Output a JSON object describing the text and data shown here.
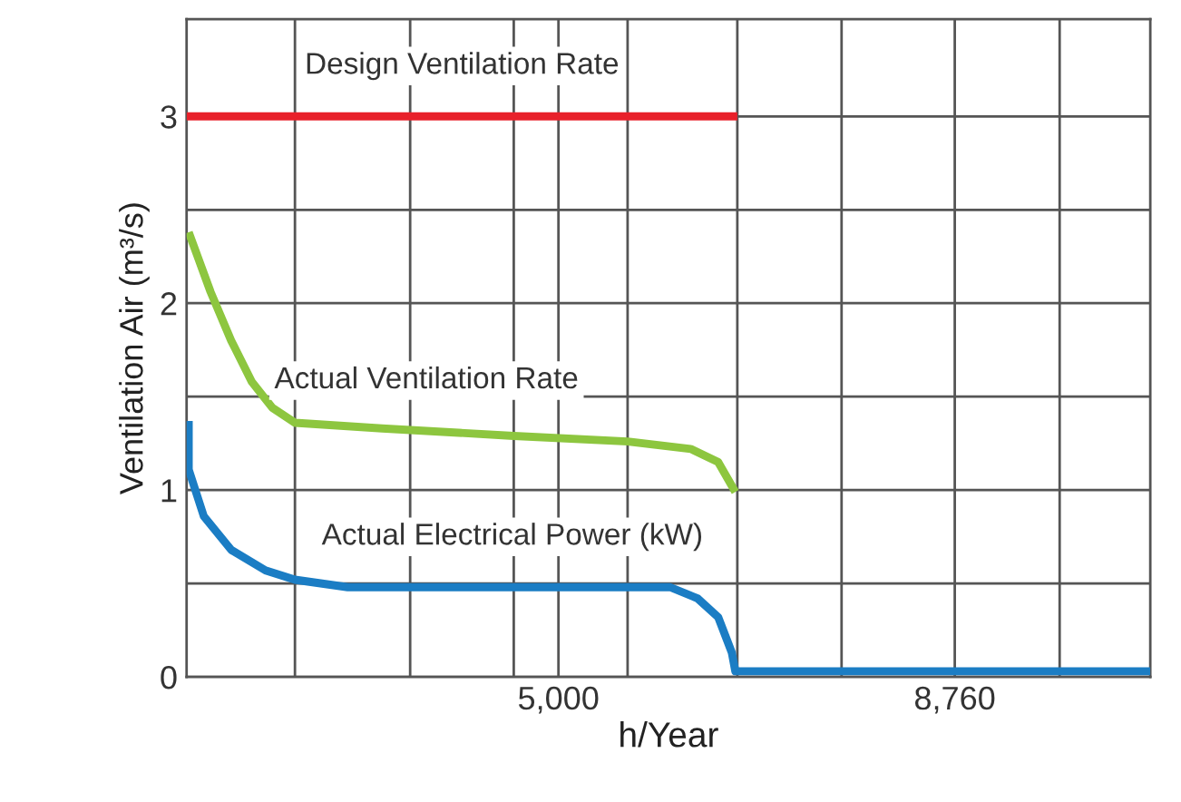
{
  "chart_data": {
    "type": "line",
    "xlabel": "h/Year",
    "ylabel": "Ventilation Air (m³/s)",
    "xlim": [
      1472,
      10615
    ],
    "ylim": [
      0,
      3.52
    ],
    "xticks": [
      {
        "value": 2500,
        "label": null
      },
      {
        "value": 3593,
        "label": null
      },
      {
        "value": 4576,
        "label": null
      },
      {
        "value": 5000,
        "label": "5,000"
      },
      {
        "value": 5656,
        "label": null
      },
      {
        "value": 6697,
        "label": null
      },
      {
        "value": 7686,
        "label": null
      },
      {
        "value": 8760,
        "label": "8,760"
      },
      {
        "value": 9755,
        "label": null
      }
    ],
    "yticks": [
      0,
      {
        "value": 0.5,
        "label": null
      },
      1,
      {
        "value": 1.5,
        "label": null
      },
      2,
      {
        "value": 2.5,
        "label": null
      },
      3
    ],
    "grid": true,
    "series": [
      {
        "name": "Design Ventilation Rate",
        "color": "#e8202a",
        "x": [
          1472,
          6697
        ],
        "values": [
          3,
          3
        ]
      },
      {
        "name": "Actual Ventilation Rate",
        "color": "#8dc63f",
        "x": [
          1492,
          1700,
          1895,
          2090,
          2286,
          2500,
          3327,
          4576,
          5656,
          6255,
          6515,
          6678
        ],
        "values": [
          2.38,
          2.06,
          1.8,
          1.58,
          1.44,
          1.36,
          1.33,
          1.29,
          1.26,
          1.22,
          1.15,
          0.99
        ]
      },
      {
        "name": "Actual Electrical Power (kW)",
        "color": "#1b7dc4",
        "x": [
          1492,
          1492,
          1635,
          1895,
          2221,
          2500,
          3001,
          4628,
          6060,
          6320,
          6515,
          6645,
          6678,
          6743,
          10615
        ],
        "values": [
          1.37,
          1.11,
          0.86,
          0.68,
          0.57,
          0.52,
          0.48,
          0.48,
          0.48,
          0.42,
          0.32,
          0.13,
          0.03,
          0.03,
          0.03
        ]
      }
    ]
  }
}
